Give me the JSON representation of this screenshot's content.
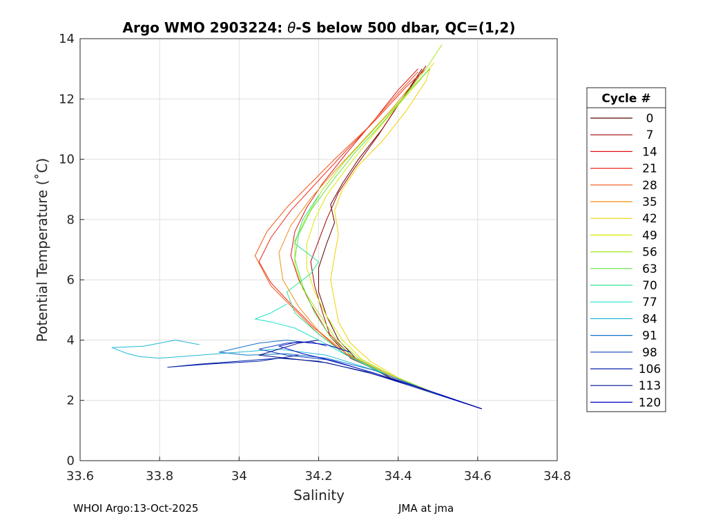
{
  "chart_data": {
    "type": "line",
    "title_prefix": "Argo WMO 2903224: ",
    "title_theta": "θ",
    "title_suffix": "-S below 500 dbar,  QC=(1,2)",
    "xlabel": "Salinity",
    "ylabel": "Potential Temperature (˚C)",
    "xlim": [
      33.6,
      34.8
    ],
    "ylim": [
      0,
      14
    ],
    "xticks": [
      "33.6",
      "33.8",
      "34",
      "34.2",
      "34.4",
      "34.6",
      "34.8"
    ],
    "yticks": [
      "0",
      "2",
      "4",
      "6",
      "8",
      "10",
      "12",
      "14"
    ],
    "grid": true,
    "legend": {
      "title": "Cycle #",
      "position": "right",
      "entries": [
        "0",
        "7",
        "14",
        "21",
        "28",
        "35",
        "42",
        "49",
        "56",
        "63",
        "70",
        "77",
        "84",
        "91",
        "98",
        "106",
        "113",
        "120"
      ],
      "colors": [
        "#5a0000",
        "#a00000",
        "#e01010",
        "#f02818",
        "#f05010",
        "#f08c10",
        "#f0d000",
        "#d8e800",
        "#a0e820",
        "#60e040",
        "#30e090",
        "#20e0c8",
        "#20b8d8",
        "#1070c8",
        "#1040b8",
        "#0020a8",
        "#001088",
        "#0000c0"
      ]
    },
    "series": [
      {
        "values": [
          [
            34.61,
            1.72
          ],
          [
            34.5,
            2.2
          ],
          [
            34.38,
            2.75
          ],
          [
            34.3,
            3.3
          ],
          [
            34.25,
            4.0
          ],
          [
            34.22,
            4.8
          ],
          [
            34.2,
            5.6
          ],
          [
            34.2,
            6.4
          ],
          [
            34.22,
            7.2
          ],
          [
            34.24,
            7.9
          ],
          [
            34.23,
            8.5
          ],
          [
            34.26,
            9.2
          ],
          [
            34.3,
            10.0
          ],
          [
            34.36,
            11.0
          ],
          [
            34.42,
            12.2
          ],
          [
            34.46,
            13.0
          ]
        ]
      },
      {
        "values": [
          [
            34.61,
            1.72
          ],
          [
            34.5,
            2.2
          ],
          [
            34.38,
            2.8
          ],
          [
            34.28,
            3.4
          ],
          [
            34.23,
            4.1
          ],
          [
            34.21,
            4.9
          ],
          [
            34.19,
            5.8
          ],
          [
            34.18,
            6.6
          ],
          [
            34.2,
            7.3
          ],
          [
            34.22,
            8.0
          ],
          [
            34.25,
            8.9
          ],
          [
            34.29,
            9.7
          ],
          [
            34.35,
            10.8
          ],
          [
            34.41,
            12.0
          ],
          [
            34.47,
            13.1
          ]
        ]
      },
      {
        "values": [
          [
            34.61,
            1.72
          ],
          [
            34.49,
            2.25
          ],
          [
            34.37,
            2.85
          ],
          [
            34.28,
            3.5
          ],
          [
            34.22,
            4.3
          ],
          [
            34.18,
            5.2
          ],
          [
            34.15,
            6.0
          ],
          [
            34.13,
            6.8
          ],
          [
            34.14,
            7.6
          ],
          [
            34.17,
            8.4
          ],
          [
            34.21,
            9.2
          ],
          [
            34.27,
            10.2
          ],
          [
            34.34,
            11.3
          ],
          [
            34.4,
            12.3
          ],
          [
            34.45,
            13.0
          ]
        ]
      },
      {
        "values": [
          [
            34.61,
            1.72
          ],
          [
            34.48,
            2.3
          ],
          [
            34.35,
            2.95
          ],
          [
            34.26,
            3.6
          ],
          [
            34.19,
            4.4
          ],
          [
            34.13,
            5.2
          ],
          [
            34.08,
            5.9
          ],
          [
            34.05,
            6.6
          ],
          [
            34.08,
            7.4
          ],
          [
            34.13,
            8.3
          ],
          [
            34.2,
            9.3
          ],
          [
            34.27,
            10.3
          ],
          [
            34.35,
            11.4
          ],
          [
            34.42,
            12.4
          ],
          [
            34.47,
            13.0
          ]
        ]
      },
      {
        "values": [
          [
            34.61,
            1.72
          ],
          [
            34.48,
            2.3
          ],
          [
            34.36,
            2.9
          ],
          [
            34.27,
            3.5
          ],
          [
            34.2,
            4.2
          ],
          [
            34.14,
            5.0
          ],
          [
            34.08,
            5.8
          ],
          [
            34.04,
            6.8
          ],
          [
            34.07,
            7.6
          ],
          [
            34.12,
            8.4
          ],
          [
            34.18,
            9.2
          ],
          [
            34.24,
            10.0
          ],
          [
            34.32,
            11.0
          ],
          [
            34.4,
            12.2
          ],
          [
            34.45,
            12.9
          ]
        ]
      },
      {
        "values": [
          [
            34.61,
            1.72
          ],
          [
            34.48,
            2.3
          ],
          [
            34.37,
            2.9
          ],
          [
            34.27,
            3.55
          ],
          [
            34.2,
            4.3
          ],
          [
            34.15,
            5.1
          ],
          [
            34.11,
            6.0
          ],
          [
            34.1,
            6.9
          ],
          [
            34.13,
            7.8
          ],
          [
            34.18,
            8.7
          ],
          [
            34.24,
            9.6
          ],
          [
            34.31,
            10.6
          ],
          [
            34.38,
            11.6
          ],
          [
            34.43,
            12.4
          ]
        ]
      },
      {
        "values": [
          [
            34.61,
            1.72
          ],
          [
            34.5,
            2.2
          ],
          [
            34.4,
            2.75
          ],
          [
            34.33,
            3.3
          ],
          [
            34.28,
            3.9
          ],
          [
            34.25,
            4.6
          ],
          [
            34.24,
            5.3
          ],
          [
            34.23,
            6.0
          ],
          [
            34.24,
            6.8
          ],
          [
            34.25,
            7.5
          ],
          [
            34.24,
            8.3
          ],
          [
            34.26,
            9.0
          ],
          [
            34.3,
            9.8
          ],
          [
            34.36,
            10.6
          ],
          [
            34.42,
            11.6
          ],
          [
            34.47,
            12.6
          ],
          [
            34.48,
            13.0
          ]
        ]
      },
      {
        "values": [
          [
            34.61,
            1.72
          ],
          [
            34.49,
            2.25
          ],
          [
            34.39,
            2.8
          ],
          [
            34.31,
            3.35
          ],
          [
            34.26,
            4.0
          ],
          [
            34.22,
            4.8
          ],
          [
            34.19,
            5.6
          ],
          [
            34.17,
            6.4
          ],
          [
            34.17,
            7.2
          ],
          [
            34.19,
            8.0
          ],
          [
            34.22,
            8.8
          ],
          [
            34.27,
            9.7
          ],
          [
            34.33,
            10.7
          ],
          [
            34.4,
            11.8
          ],
          [
            34.46,
            12.7
          ],
          [
            34.49,
            13.2
          ]
        ]
      },
      {
        "values": [
          [
            34.61,
            1.72
          ],
          [
            34.5,
            2.2
          ],
          [
            34.39,
            2.8
          ],
          [
            34.3,
            3.4
          ],
          [
            34.24,
            4.1
          ],
          [
            34.2,
            4.9
          ],
          [
            34.16,
            5.7
          ],
          [
            34.14,
            6.5
          ],
          [
            34.14,
            7.3
          ],
          [
            34.17,
            8.1
          ],
          [
            34.21,
            9.0
          ],
          [
            34.27,
            10.0
          ],
          [
            34.34,
            11.0
          ],
          [
            34.41,
            12.0
          ],
          [
            34.47,
            13.0
          ],
          [
            34.51,
            13.8
          ]
        ]
      },
      {
        "values": [
          [
            34.61,
            1.72
          ],
          [
            34.5,
            2.2
          ],
          [
            34.38,
            2.8
          ],
          [
            34.29,
            3.4
          ],
          [
            34.23,
            4.1
          ],
          [
            34.19,
            4.9
          ],
          [
            34.16,
            5.8
          ],
          [
            34.14,
            6.7
          ],
          [
            34.15,
            7.5
          ],
          [
            34.18,
            8.3
          ],
          [
            34.23,
            9.2
          ],
          [
            34.29,
            10.2
          ],
          [
            34.36,
            11.2
          ],
          [
            34.43,
            12.3
          ],
          [
            34.48,
            13.0
          ]
        ]
      },
      {
        "values": [
          [
            34.61,
            1.72
          ],
          [
            34.49,
            2.25
          ],
          [
            34.37,
            2.85
          ],
          [
            34.27,
            3.5
          ],
          [
            34.2,
            4.2
          ],
          [
            34.14,
            4.9
          ],
          [
            34.12,
            5.6
          ],
          [
            34.18,
            6.2
          ],
          [
            34.2,
            6.6
          ],
          [
            34.14,
            7.2
          ],
          [
            34.16,
            8.0
          ],
          [
            34.2,
            8.8
          ]
        ]
      },
      {
        "values": [
          [
            34.61,
            1.72
          ],
          [
            34.48,
            2.3
          ],
          [
            34.36,
            2.9
          ],
          [
            34.27,
            3.5
          ],
          [
            34.2,
            4.0
          ],
          [
            34.14,
            4.4
          ],
          [
            34.08,
            4.6
          ],
          [
            34.04,
            4.7
          ],
          [
            34.08,
            4.9
          ],
          [
            34.12,
            5.2
          ]
        ]
      },
      {
        "values": [
          [
            34.61,
            1.72
          ],
          [
            34.47,
            2.35
          ],
          [
            34.34,
            3.0
          ],
          [
            34.22,
            3.5
          ],
          [
            34.1,
            3.7
          ],
          [
            34.0,
            3.6
          ],
          [
            33.9,
            3.5
          ],
          [
            33.8,
            3.4
          ],
          [
            33.75,
            3.45
          ],
          [
            33.72,
            3.55
          ],
          [
            33.68,
            3.75
          ],
          [
            33.76,
            3.8
          ],
          [
            33.84,
            4.0
          ],
          [
            33.9,
            3.85
          ]
        ]
      },
      {
        "values": [
          [
            34.61,
            1.72
          ],
          [
            34.47,
            2.35
          ],
          [
            34.34,
            3.0
          ],
          [
            34.22,
            3.4
          ],
          [
            34.12,
            3.55
          ],
          [
            34.02,
            3.5
          ],
          [
            33.95,
            3.6
          ],
          [
            34.05,
            3.9
          ],
          [
            34.12,
            4.0
          ],
          [
            34.18,
            3.9
          ]
        ]
      },
      {
        "values": [
          [
            34.61,
            1.72
          ],
          [
            34.46,
            2.4
          ],
          [
            34.33,
            2.95
          ],
          [
            34.22,
            3.35
          ],
          [
            34.12,
            3.5
          ],
          [
            34.05,
            3.7
          ],
          [
            34.12,
            3.9
          ],
          [
            34.18,
            3.95
          ],
          [
            34.22,
            3.8
          ]
        ]
      },
      {
        "values": [
          [
            34.61,
            1.72
          ],
          [
            34.45,
            2.4
          ],
          [
            34.32,
            2.95
          ],
          [
            34.2,
            3.3
          ],
          [
            34.1,
            3.4
          ],
          [
            34.0,
            3.3
          ],
          [
            33.9,
            3.2
          ],
          [
            33.82,
            3.1
          ],
          [
            33.92,
            3.2
          ],
          [
            34.05,
            3.3
          ],
          [
            34.15,
            3.5
          ]
        ]
      },
      {
        "values": [
          [
            34.61,
            1.72
          ],
          [
            34.46,
            2.4
          ],
          [
            34.33,
            2.9
          ],
          [
            34.22,
            3.25
          ],
          [
            34.12,
            3.4
          ],
          [
            34.05,
            3.5
          ],
          [
            34.1,
            3.7
          ],
          [
            34.15,
            3.9
          ],
          [
            34.2,
            4.0
          ]
        ]
      },
      {
        "values": [
          [
            34.61,
            1.72
          ],
          [
            34.47,
            2.35
          ],
          [
            34.34,
            2.9
          ],
          [
            34.24,
            3.3
          ],
          [
            34.16,
            3.55
          ],
          [
            34.1,
            3.8
          ],
          [
            34.15,
            3.95
          ],
          [
            34.22,
            3.85
          ],
          [
            34.28,
            3.6
          ]
        ]
      }
    ]
  },
  "footer": {
    "left": "WHOI Argo:13-Oct-2025",
    "right": "JMA at jma"
  }
}
